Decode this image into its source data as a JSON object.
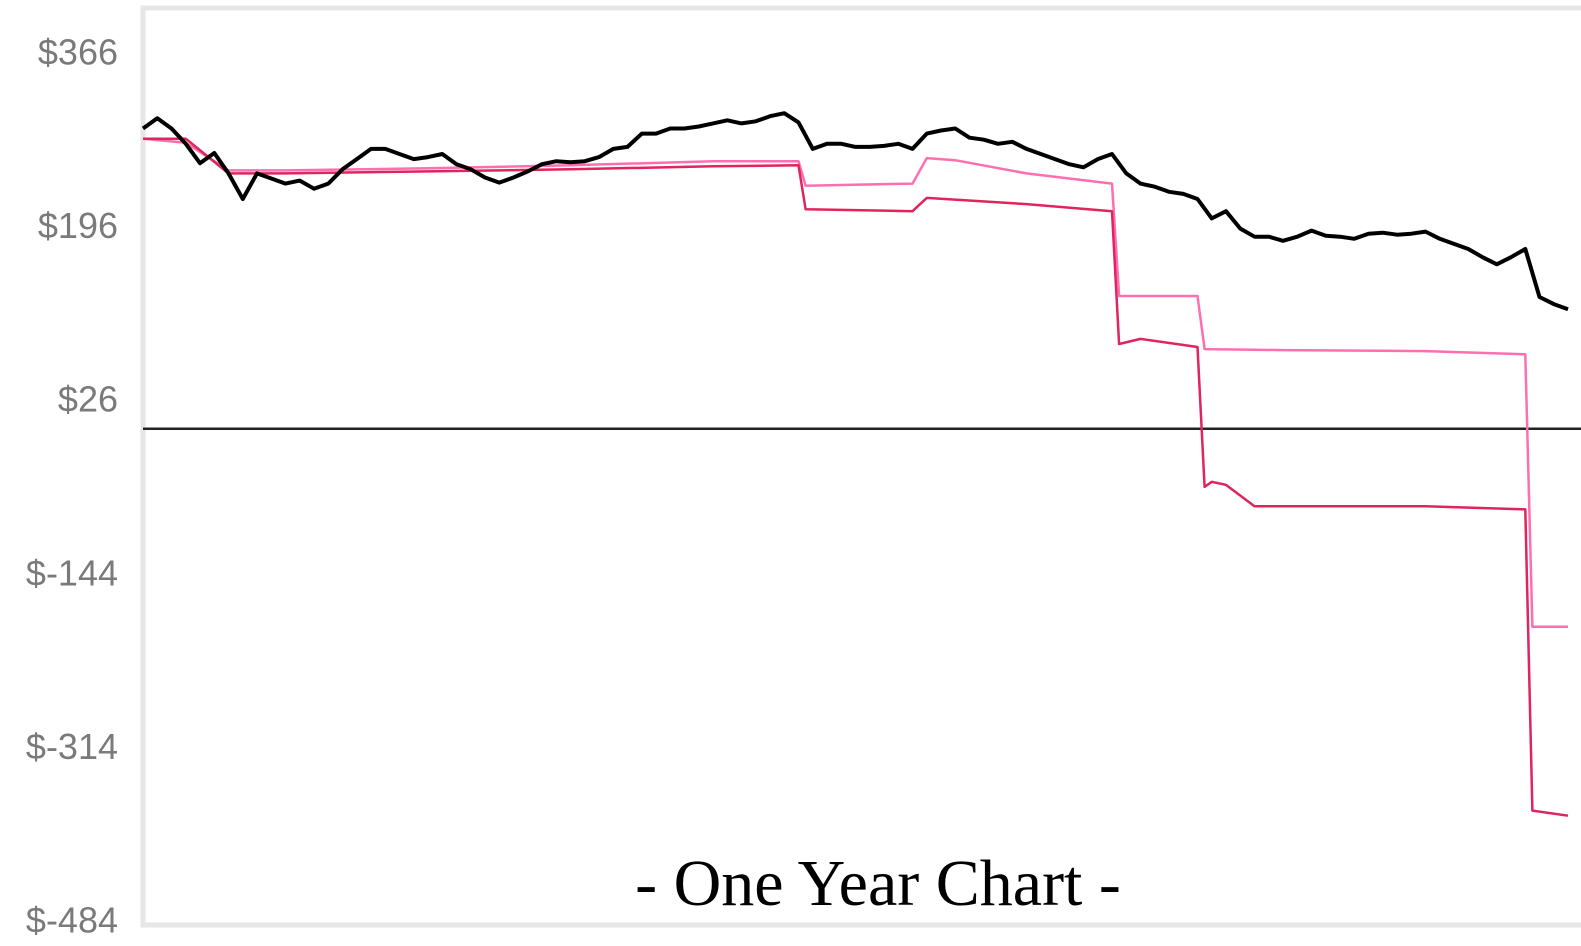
{
  "chart_data": {
    "type": "line",
    "title": "- One Year Chart -",
    "ylim": [
      -486,
      412
    ],
    "yticks": [
      {
        "value": 366,
        "label": "$366"
      },
      {
        "value": 196,
        "label": "$196"
      },
      {
        "value": 26,
        "label": "$26"
      },
      {
        "value": -144,
        "label": "$-144"
      },
      {
        "value": -314,
        "label": "$-314"
      },
      {
        "value": -484,
        "label": "$-484"
      }
    ],
    "xlim": [
      0,
      100
    ],
    "hline": 0,
    "series": [
      {
        "color": "#ff6fb0",
        "x": [
          0,
          3,
          6,
          10,
          20,
          30,
          40,
          46,
          46.5,
          54,
          55,
          57,
          62,
          68,
          68.5,
          74,
          74.5,
          80,
          90,
          97,
          97.5,
          100
        ],
        "values": [
          284,
          280,
          253,
          253,
          255,
          258,
          262,
          262,
          238,
          240,
          265,
          263,
          250,
          240,
          130,
          130,
          78,
          77,
          76,
          73,
          -194,
          -194
        ]
      },
      {
        "color": "#e0245e",
        "x": [
          0,
          3,
          6,
          10,
          20,
          30,
          40,
          46,
          46.5,
          54,
          55,
          62,
          68,
          68.5,
          70,
          74,
          74.5,
          75,
          76,
          78,
          90,
          97,
          97.5,
          100
        ],
        "values": [
          284,
          284,
          250,
          250,
          252,
          254,
          257,
          258,
          215,
          213,
          226,
          220,
          213,
          83,
          88,
          80,
          -57,
          -52,
          -55,
          -76,
          -76,
          -79,
          -374,
          -379
        ]
      },
      {
        "color": "#000000",
        "x": [
          0,
          1,
          2,
          3,
          4,
          5,
          6,
          7,
          8,
          9,
          10,
          11,
          12,
          13,
          14,
          15,
          16,
          17,
          18,
          19,
          20,
          21,
          22,
          23,
          24,
          25,
          26,
          27,
          28,
          29,
          30,
          31,
          32,
          33,
          34,
          35,
          36,
          37,
          38,
          39,
          40,
          41,
          42,
          43,
          44,
          45,
          46,
          47,
          48,
          49,
          50,
          51,
          52,
          53,
          54,
          55,
          56,
          57,
          58,
          59,
          60,
          61,
          62,
          63,
          64,
          65,
          66,
          67,
          68,
          69,
          70,
          71,
          72,
          73,
          74,
          75,
          76,
          77,
          78,
          79,
          80,
          81,
          82,
          83,
          84,
          85,
          86,
          87,
          88,
          89,
          90,
          91,
          92,
          93,
          94,
          95,
          96,
          97,
          98,
          99,
          100
        ],
        "values": [
          294,
          304,
          294,
          279,
          260,
          270,
          250,
          225,
          250,
          245,
          240,
          243,
          235,
          240,
          254,
          264,
          274,
          274,
          269,
          264,
          266,
          269,
          259,
          254,
          246,
          241,
          246,
          252,
          259,
          262,
          261,
          262,
          266,
          274,
          276,
          289,
          289,
          294,
          294,
          296,
          299,
          302,
          299,
          301,
          306,
          309,
          300,
          274,
          279,
          279,
          276,
          276,
          277,
          279,
          274,
          289,
          292,
          294,
          285,
          283,
          279,
          281,
          274,
          269,
          264,
          259,
          256,
          264,
          269,
          250,
          240,
          237,
          232,
          230,
          225,
          206,
          213,
          196,
          188,
          188,
          184,
          188,
          194,
          189,
          188,
          186,
          191,
          192,
          190,
          191,
          193,
          186,
          181,
          176,
          168,
          161,
          168,
          176,
          129,
          122,
          117
        ]
      }
    ]
  }
}
